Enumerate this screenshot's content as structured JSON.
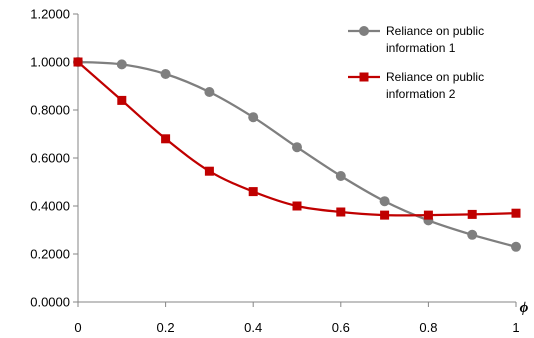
{
  "chart_data": {
    "type": "line",
    "title": "",
    "xlabel": "ϕ",
    "ylabel": "",
    "x": [
      0,
      0.1,
      0.2,
      0.3,
      0.4,
      0.5,
      0.6,
      0.7,
      0.8,
      0.9,
      1.0
    ],
    "xlim": [
      0,
      1
    ],
    "ylim": [
      0,
      1.2
    ],
    "x_ticks": [
      0,
      0.2,
      0.4,
      0.6,
      0.8,
      1
    ],
    "x_tick_labels": [
      "0",
      "0.2",
      "0.4",
      "0.6",
      "0.8",
      "1"
    ],
    "y_ticks": [
      0,
      0.2,
      0.4,
      0.6,
      0.8,
      1.0,
      1.2
    ],
    "y_tick_labels": [
      "0.0000",
      "0.2000",
      "0.4000",
      "0.6000",
      "0.8000",
      "1.0000",
      "1.2000"
    ],
    "grid": false,
    "legend_placement": "top-right",
    "series": [
      {
        "name": "Reliance on public information 1",
        "legend_lines": [
          "Reliance on public",
          "information 1"
        ],
        "color": "#7f7f7f",
        "marker": "circle",
        "values": [
          1.0,
          0.99,
          0.95,
          0.875,
          0.77,
          0.645,
          0.525,
          0.42,
          0.34,
          0.28,
          0.23
        ]
      },
      {
        "name": "Reliance on public information 2",
        "legend_lines": [
          "Reliance on public",
          "information 2"
        ],
        "color": "#c00000",
        "marker": "square",
        "values": [
          1.0,
          0.84,
          0.68,
          0.545,
          0.46,
          0.4,
          0.375,
          0.362,
          0.362,
          0.365,
          0.37
        ]
      }
    ]
  }
}
